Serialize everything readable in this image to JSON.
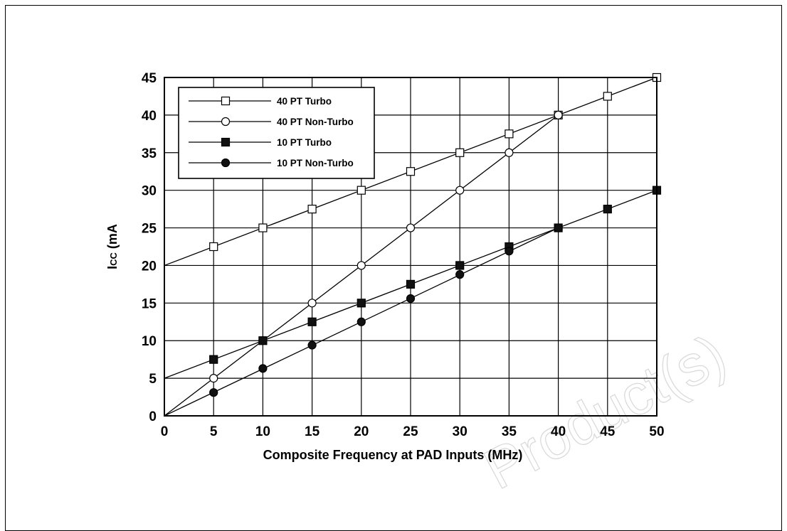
{
  "chart_data": {
    "type": "line",
    "xlabel": "Composite Frequency at PAD Inputs (MHz)",
    "ylabel_main": "I",
    "ylabel_sub": "CC",
    "ylabel_rest": " (mA",
    "xlim": [
      0,
      50
    ],
    "ylim": [
      0,
      45
    ],
    "x_ticks": [
      0,
      5,
      10,
      15,
      20,
      25,
      30,
      35,
      40,
      45,
      50
    ],
    "y_ticks": [
      0,
      5,
      10,
      15,
      20,
      25,
      30,
      35,
      40,
      45
    ],
    "grid": true,
    "legend_position": "top-left",
    "series": [
      {
        "name": "40 PT Turbo",
        "marker": "square-open",
        "line": [
          [
            0,
            20
          ],
          [
            50,
            45
          ]
        ],
        "x": [
          5,
          10,
          15,
          20,
          25,
          30,
          35,
          40,
          45,
          50
        ],
        "y": [
          22.5,
          25,
          27.5,
          30,
          32.5,
          35,
          37.5,
          40,
          42.5,
          45
        ]
      },
      {
        "name": "40 PT Non-Turbo",
        "marker": "circle-open",
        "line": [
          [
            0,
            0
          ],
          [
            40,
            40
          ]
        ],
        "x": [
          5,
          10,
          15,
          20,
          25,
          30,
          35,
          40
        ],
        "y": [
          5,
          10,
          15,
          20,
          25,
          30,
          35,
          40
        ]
      },
      {
        "name": "10 PT Turbo",
        "marker": "square-filled",
        "line": [
          [
            0,
            5
          ],
          [
            50,
            30
          ]
        ],
        "x": [
          5,
          10,
          15,
          20,
          25,
          30,
          35,
          40,
          45,
          50
        ],
        "y": [
          7.5,
          10,
          12.5,
          15,
          17.5,
          20,
          22.5,
          25,
          27.5,
          30
        ]
      },
      {
        "name": "10 PT Non-Turbo",
        "marker": "circle-filled",
        "line": [
          [
            0,
            0
          ],
          [
            40,
            25
          ]
        ],
        "x": [
          5,
          10,
          15,
          20,
          25,
          30,
          35,
          40
        ],
        "y": [
          3.1,
          6.3,
          9.4,
          12.5,
          15.6,
          18.8,
          21.9,
          25
        ]
      }
    ]
  },
  "watermark": "Product(s)"
}
